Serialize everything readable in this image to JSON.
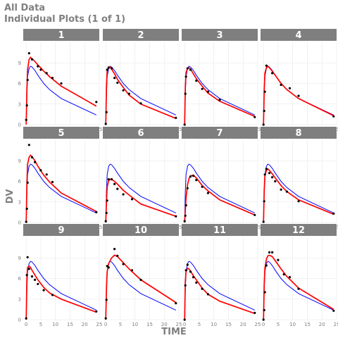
{
  "title": "All Data",
  "subtitle": "Individual Plots (1 of 1)",
  "chart_data": {
    "type": "line",
    "xlabel": "TIME",
    "ylabel": "DV",
    "xlim": [
      -1,
      25
    ],
    "ylim": [
      0,
      12
    ],
    "xticks": [
      0,
      5,
      10,
      15,
      20,
      25
    ],
    "yticks": [
      0,
      3,
      6,
      9
    ],
    "colors": {
      "observed": "#000000",
      "individual_pred": "#ff0000",
      "population_pred": "#0000ff",
      "strip": "#7f7f7f"
    },
    "population_pred": {
      "x": [
        0,
        0.25,
        0.5,
        1,
        1.5,
        2,
        3,
        4,
        6,
        8,
        12,
        24
      ],
      "y": [
        0,
        4.5,
        7.0,
        8.2,
        8.5,
        8.4,
        7.9,
        7.2,
        6.0,
        5.1,
        3.8,
        1.4
      ]
    },
    "panels": [
      {
        "id": "1",
        "obs": [
          [
            0,
            0.7
          ],
          [
            0.25,
            2.8
          ],
          [
            0.5,
            6.5
          ],
          [
            1,
            10.4
          ],
          [
            2,
            9.5
          ],
          [
            4,
            8.5
          ],
          [
            5,
            8.0
          ],
          [
            7,
            7.5
          ],
          [
            9,
            6.8
          ],
          [
            12,
            6.0
          ],
          [
            24,
            3.3
          ]
        ],
        "ipred": [
          [
            0,
            0
          ],
          [
            0.25,
            5.0
          ],
          [
            0.5,
            8.0
          ],
          [
            1,
            9.5
          ],
          [
            1.5,
            9.8
          ],
          [
            2,
            9.6
          ],
          [
            3,
            9.2
          ],
          [
            4,
            8.7
          ],
          [
            6,
            7.8
          ],
          [
            8,
            7.0
          ],
          [
            12,
            5.6
          ],
          [
            24,
            2.7
          ]
        ]
      },
      {
        "id": "2",
        "obs": [
          [
            0,
            0.1
          ],
          [
            0.25,
            1.8
          ],
          [
            0.5,
            8.0
          ],
          [
            1,
            8.3
          ],
          [
            2,
            8.2
          ],
          [
            3,
            6.8
          ],
          [
            4,
            6.1
          ],
          [
            6,
            5.0
          ],
          [
            8,
            4.5
          ],
          [
            12,
            3.1
          ],
          [
            24,
            1.0
          ]
        ],
        "ipred": [
          [
            0,
            0
          ],
          [
            0.25,
            5.5
          ],
          [
            0.5,
            7.8
          ],
          [
            1,
            8.4
          ],
          [
            1.5,
            8.4
          ],
          [
            2,
            8.1
          ],
          [
            3,
            7.4
          ],
          [
            4,
            6.6
          ],
          [
            6,
            5.4
          ],
          [
            8,
            4.3
          ],
          [
            12,
            3.0
          ],
          [
            24,
            0.9
          ]
        ]
      },
      {
        "id": "3",
        "obs": [
          [
            0,
            0.0
          ],
          [
            0.25,
            4.5
          ],
          [
            0.5,
            7.0
          ],
          [
            1,
            8.2
          ],
          [
            2,
            8.0
          ],
          [
            4,
            6.4
          ],
          [
            6,
            5.2
          ],
          [
            8,
            4.8
          ],
          [
            12,
            3.6
          ],
          [
            24,
            1.1
          ]
        ],
        "ipred": [
          [
            0,
            0
          ],
          [
            0.25,
            5.5
          ],
          [
            0.5,
            7.6
          ],
          [
            1,
            8.2
          ],
          [
            1.5,
            8.3
          ],
          [
            2,
            8.1
          ],
          [
            3,
            7.4
          ],
          [
            4,
            6.7
          ],
          [
            6,
            5.6
          ],
          [
            8,
            4.6
          ],
          [
            12,
            3.4
          ],
          [
            24,
            1.2
          ]
        ]
      },
      {
        "id": "4",
        "obs": [
          [
            0,
            0.0
          ],
          [
            0.25,
            2.0
          ],
          [
            0.5,
            4.8
          ],
          [
            1,
            8.6
          ],
          [
            3,
            7.5
          ],
          [
            6,
            5.8
          ],
          [
            9,
            5.3
          ],
          [
            12,
            4.2
          ],
          [
            24,
            1.2
          ]
        ],
        "ipred": [
          [
            0,
            0
          ],
          [
            0.25,
            5.0
          ],
          [
            0.5,
            7.5
          ],
          [
            1,
            8.3
          ],
          [
            1.5,
            8.5
          ],
          [
            2,
            8.3
          ],
          [
            3,
            7.8
          ],
          [
            4,
            7.2
          ],
          [
            6,
            6.0
          ],
          [
            8,
            5.1
          ],
          [
            12,
            3.8
          ],
          [
            24,
            1.3
          ]
        ]
      },
      {
        "id": "5",
        "obs": [
          [
            0,
            0.1
          ],
          [
            0.25,
            2.0
          ],
          [
            0.5,
            5.8
          ],
          [
            1,
            11.3
          ],
          [
            2,
            9.5
          ],
          [
            3,
            8.8
          ],
          [
            5,
            7.6
          ],
          [
            7,
            7.0
          ],
          [
            9,
            5.9
          ],
          [
            24,
            1.5
          ]
        ],
        "ipred": [
          [
            0,
            0
          ],
          [
            0.25,
            5.5
          ],
          [
            0.5,
            8.5
          ],
          [
            1,
            9.5
          ],
          [
            1.5,
            9.8
          ],
          [
            2,
            9.6
          ],
          [
            3,
            9.0
          ],
          [
            4,
            8.2
          ],
          [
            6,
            6.9
          ],
          [
            8,
            5.9
          ],
          [
            12,
            4.3
          ],
          [
            24,
            1.6
          ]
        ]
      },
      {
        "id": "6",
        "obs": [
          [
            0,
            0.2
          ],
          [
            0.25,
            1.4
          ],
          [
            0.5,
            3.2
          ],
          [
            1,
            6.3
          ],
          [
            2,
            6.3
          ],
          [
            3,
            5.6
          ],
          [
            4,
            4.9
          ],
          [
            6,
            4.1
          ],
          [
            9,
            3.4
          ],
          [
            24,
            0.9
          ]
        ],
        "ipred": [
          [
            0,
            0
          ],
          [
            0.25,
            3.0
          ],
          [
            0.5,
            5.2
          ],
          [
            1,
            6.1
          ],
          [
            1.5,
            6.3
          ],
          [
            2,
            6.3
          ],
          [
            3,
            6.0
          ],
          [
            4,
            5.6
          ],
          [
            6,
            4.7
          ],
          [
            8,
            4.0
          ],
          [
            12,
            2.7
          ],
          [
            24,
            0.9
          ]
        ]
      },
      {
        "id": "7",
        "obs": [
          [
            0,
            0.2
          ],
          [
            0.25,
            1.0
          ],
          [
            0.5,
            2.5
          ],
          [
            1,
            5.0
          ],
          [
            2,
            6.7
          ],
          [
            3,
            6.8
          ],
          [
            4,
            6.2
          ],
          [
            6,
            5.2
          ],
          [
            8,
            4.3
          ],
          [
            24,
            1.1
          ]
        ],
        "ipred": [
          [
            0,
            0
          ],
          [
            0.25,
            1.8
          ],
          [
            0.5,
            3.6
          ],
          [
            1,
            5.5
          ],
          [
            1.5,
            6.4
          ],
          [
            2,
            6.8
          ],
          [
            3,
            6.9
          ],
          [
            4,
            6.5
          ],
          [
            6,
            5.4
          ],
          [
            8,
            4.6
          ],
          [
            12,
            3.3
          ],
          [
            24,
            1.1
          ]
        ]
      },
      {
        "id": "8",
        "obs": [
          [
            0,
            0.1
          ],
          [
            0.25,
            3.1
          ],
          [
            0.5,
            7.0
          ],
          [
            1,
            7.8
          ],
          [
            2,
            7.2
          ],
          [
            3,
            6.6
          ],
          [
            4,
            6.0
          ],
          [
            6,
            4.8
          ],
          [
            8,
            4.5
          ],
          [
            12,
            3.1
          ],
          [
            24,
            1.3
          ]
        ],
        "ipred": [
          [
            0,
            0
          ],
          [
            0.25,
            4.5
          ],
          [
            0.5,
            6.8
          ],
          [
            1,
            7.6
          ],
          [
            1.5,
            7.8
          ],
          [
            2,
            7.6
          ],
          [
            3,
            7.1
          ],
          [
            4,
            6.5
          ],
          [
            6,
            5.4
          ],
          [
            8,
            4.5
          ],
          [
            12,
            3.3
          ],
          [
            24,
            1.2
          ]
        ]
      },
      {
        "id": "9",
        "obs": [
          [
            0,
            0.2
          ],
          [
            0.25,
            6.5
          ],
          [
            0.5,
            9.1
          ],
          [
            1,
            7.4
          ],
          [
            2,
            6.3
          ],
          [
            3,
            5.8
          ],
          [
            4,
            5.2
          ],
          [
            6,
            4.3
          ],
          [
            9,
            3.6
          ],
          [
            24,
            1.2
          ]
        ],
        "ipred": [
          [
            0,
            0
          ],
          [
            0.25,
            6.0
          ],
          [
            0.5,
            7.6
          ],
          [
            1,
            7.8
          ],
          [
            1.5,
            7.6
          ],
          [
            2,
            7.2
          ],
          [
            3,
            6.5
          ],
          [
            4,
            5.8
          ],
          [
            6,
            4.7
          ],
          [
            8,
            3.9
          ],
          [
            12,
            3.0
          ],
          [
            24,
            1.1
          ]
        ]
      },
      {
        "id": "10",
        "obs": [
          [
            0,
            0.2
          ],
          [
            0.25,
            2.9
          ],
          [
            0.5,
            7.8
          ],
          [
            1,
            7.6
          ],
          [
            3,
            10.3
          ],
          [
            4,
            9.3
          ],
          [
            6,
            8.1
          ],
          [
            9,
            7.2
          ],
          [
            12,
            5.8
          ],
          [
            24,
            2.4
          ]
        ],
        "ipred": [
          [
            0,
            0
          ],
          [
            0.25,
            4.5
          ],
          [
            0.5,
            7.0
          ],
          [
            1,
            8.2
          ],
          [
            2,
            9.0
          ],
          [
            3,
            9.4
          ],
          [
            4,
            9.2
          ],
          [
            6,
            8.3
          ],
          [
            8,
            7.4
          ],
          [
            12,
            5.8
          ],
          [
            24,
            2.5
          ]
        ]
      },
      {
        "id": "11",
        "obs": [
          [
            0,
            0.0
          ],
          [
            0.25,
            5.0
          ],
          [
            0.5,
            7.2
          ],
          [
            1,
            8.0
          ],
          [
            2,
            7.0
          ],
          [
            3,
            6.2
          ],
          [
            4,
            5.4
          ],
          [
            6,
            4.5
          ],
          [
            8,
            3.7
          ],
          [
            24,
            1.0
          ]
        ],
        "ipred": [
          [
            0,
            0
          ],
          [
            0.25,
            5.5
          ],
          [
            0.5,
            7.0
          ],
          [
            1,
            7.5
          ],
          [
            1.5,
            7.4
          ],
          [
            2,
            7.1
          ],
          [
            3,
            6.4
          ],
          [
            4,
            5.8
          ],
          [
            6,
            4.6
          ],
          [
            8,
            3.7
          ],
          [
            12,
            2.7
          ],
          [
            24,
            0.9
          ]
        ]
      },
      {
        "id": "12",
        "obs": [
          [
            0,
            0.0
          ],
          [
            0.25,
            1.4
          ],
          [
            0.5,
            4.0
          ],
          [
            1,
            7.9
          ],
          [
            2,
            9.8
          ],
          [
            3,
            9.8
          ],
          [
            5,
            8.7
          ],
          [
            7,
            6.6
          ],
          [
            9,
            6.2
          ],
          [
            12,
            4.5
          ],
          [
            24,
            1.3
          ]
        ],
        "ipred": [
          [
            0,
            0
          ],
          [
            0.25,
            5.0
          ],
          [
            0.5,
            7.5
          ],
          [
            1,
            8.8
          ],
          [
            1.5,
            9.3
          ],
          [
            2,
            9.4
          ],
          [
            3,
            9.2
          ],
          [
            4,
            8.6
          ],
          [
            6,
            7.4
          ],
          [
            8,
            6.3
          ],
          [
            12,
            4.6
          ],
          [
            24,
            1.5
          ]
        ]
      }
    ]
  }
}
